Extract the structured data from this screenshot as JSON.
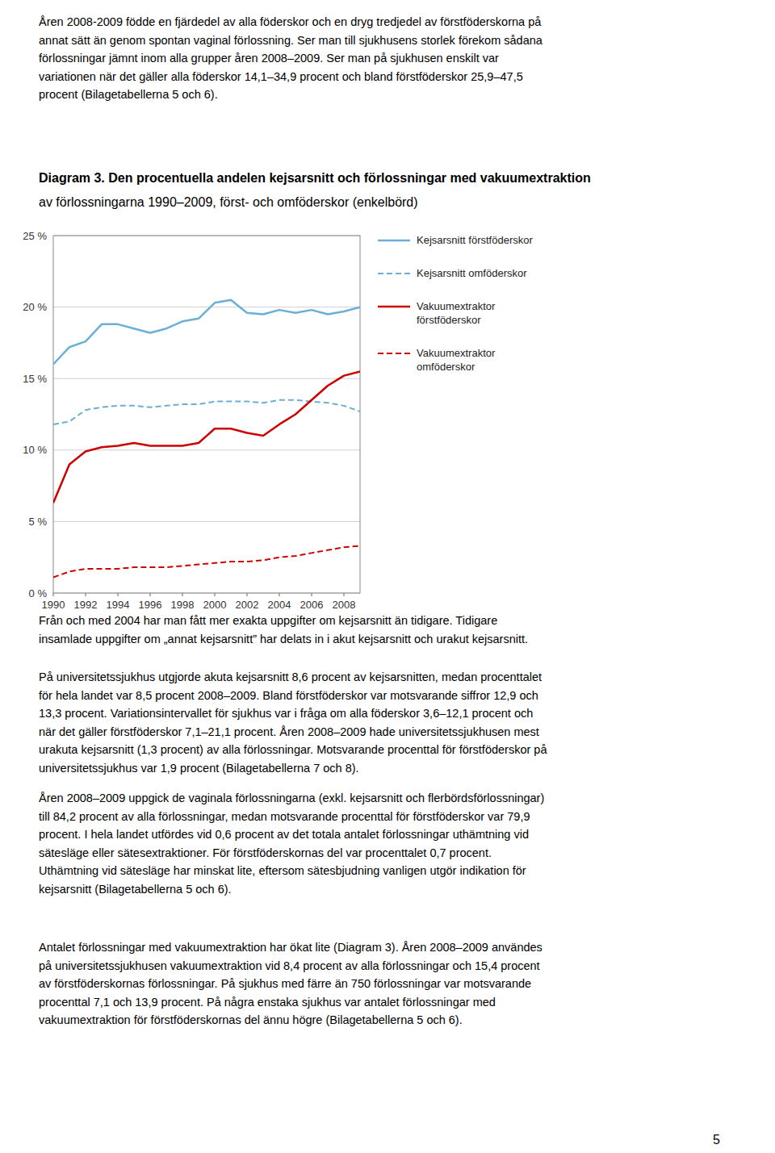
{
  "chart_data": {
    "type": "line",
    "title": "Diagram 3. Den procentuella andelen kejsarsnitt och förlossningar med vakuumextraktion",
    "subtitle": "av förlossningarna 1990–2009, först- och omföderskor (enkelbörd)",
    "x": [
      1990,
      1991,
      1992,
      1993,
      1994,
      1995,
      1996,
      1997,
      1998,
      1999,
      2000,
      2001,
      2002,
      2003,
      2004,
      2005,
      2006,
      2007,
      2008,
      2009
    ],
    "series": [
      {
        "name": "Kejsarsnitt förstföderskor",
        "color": "#6baed6",
        "line_style": "solid",
        "values": [
          16.0,
          17.2,
          17.6,
          18.8,
          18.8,
          18.5,
          18.2,
          18.5,
          19.0,
          19.2,
          20.3,
          20.5,
          19.6,
          19.5,
          19.8,
          19.6,
          19.8,
          19.5,
          19.7,
          20.0
        ]
      },
      {
        "name": "Kejsarsnitt omföderskor",
        "color": "#6baed6",
        "line_style": "dashed",
        "values": [
          11.8,
          12.0,
          12.8,
          13.0,
          13.1,
          13.1,
          13.0,
          13.1,
          13.2,
          13.2,
          13.4,
          13.4,
          13.4,
          13.3,
          13.5,
          13.5,
          13.4,
          13.3,
          13.1,
          12.7
        ]
      },
      {
        "name": "Vakuumextraktor\nförstföderskor",
        "color": "#cc0000",
        "line_style": "solid",
        "values": [
          6.3,
          9.0,
          9.9,
          10.2,
          10.3,
          10.5,
          10.3,
          10.3,
          10.3,
          10.5,
          11.5,
          11.5,
          11.2,
          11.0,
          11.8,
          12.5,
          13.5,
          14.5,
          15.2,
          15.5
        ]
      },
      {
        "name": "Vakuumextraktor\nomföderskor",
        "color": "#cc0000",
        "line_style": "dashed",
        "values": [
          1.1,
          1.5,
          1.7,
          1.7,
          1.7,
          1.8,
          1.8,
          1.8,
          1.9,
          2.0,
          2.1,
          2.2,
          2.2,
          2.3,
          2.5,
          2.6,
          2.8,
          3.0,
          3.2,
          3.3
        ]
      }
    ],
    "xlim": [
      1990,
      2009
    ],
    "xticks": [
      1990,
      1992,
      1994,
      1996,
      1998,
      2000,
      2002,
      2004,
      2006,
      2008
    ],
    "ylim": [
      0,
      25
    ],
    "yticks": [
      {
        "value": 0,
        "label": "0 %"
      },
      {
        "value": 5,
        "label": "5 %"
      },
      {
        "value": 10,
        "label": "10 %"
      },
      {
        "value": 15,
        "label": "15 %"
      },
      {
        "value": 20,
        "label": "20 %"
      },
      {
        "value": 25,
        "label": "25 %"
      }
    ],
    "grid": true,
    "legend": "right"
  },
  "text_above": [
    "Åren 2008-2009 födde en fjärdedel av alla föderskor och en dryg tredjedel av förstföderskorna på\nannat sätt än genom spontan vaginal förlossning. Ser man till sjukhusens storlek förekom sådana\nförlossningar jämnt inom alla grupper åren 2008–2009. Ser man på sjukhusen enskilt var\nvariationen när det gäller alla föderskor 14,1–34,9 procent och bland förstföderskor 25,9–47,5\nprocent (Bilagetabellerna 5 och 6)."
  ],
  "text_below": [
    "Från och med 2004 har man fått mer exakta uppgifter om kejsarsnitt än tidigare. Tidigare\ninsamlade uppgifter om „annat kejsarsnitt” har delats in i akut kejsarsnitt och urakut kejsarsnitt.",
    "På universitetssjukhus utgjorde akuta kejsarsnitt 8,6 procent av kejsarsnitten, medan procenttalet\nför hela landet var 8,5 procent 2008–2009. Bland förstföderskor var motsvarande siffror 12,9 och\n13,3 procent. Variationsintervallet för sjukhus var i fråga om alla föderskor 3,6–12,1 procent och\nnär det gäller förstföderskor 7,1–21,1 procent. Åren 2008–2009 hade universitetssjukhusen mest\nurakuta kejsarsnitt (1,3 procent) av alla förlossningar. Motsvarande procenttal för förstföderskor på\nuniversitetssjukhus var 1,9 procent (Bilagetabellerna 7 och 8).",
    "Åren 2008–2009 uppgick de vaginala förlossningarna (exkl. kejsarsnitt och flerbördsförlossningar)\ntill 84,2 procent av alla förlossningar, medan motsvarande procenttal för förstföderskor var 79,9\nprocent. I hela landet utfördes vid 0,6 procent av det totala antalet förlossningar uthämtning vid\nsätesläge eller sätesextraktioner. För förstföderskornas del var procenttalet 0,7 procent.\nUthämtning vid sätesläge har minskat lite, eftersom sätesbjudning vanligen utgör indikation för\nkejsarsnitt (Bilagetabellerna 5 och 6).",
    "Antalet förlossningar med vakuumextraktion har ökat lite (Diagram 3). Åren 2008–2009 användes\npå universitetssjukhusen vakuumextraktion vid 8,4 procent av alla förlossningar och 15,4 procent\nav förstföderskornas förlossningar. På sjukhus med färre än 750 förlossningar var motsvarande\nprocenttal 7,1 och 13,9 procent. På några enstaka sjukhus var antalet förlossningar med\nvakuumextraktion för förstföderskornas del ännu högre (Bilagetabellerna 5 och 6)."
  ],
  "page_number": "5"
}
